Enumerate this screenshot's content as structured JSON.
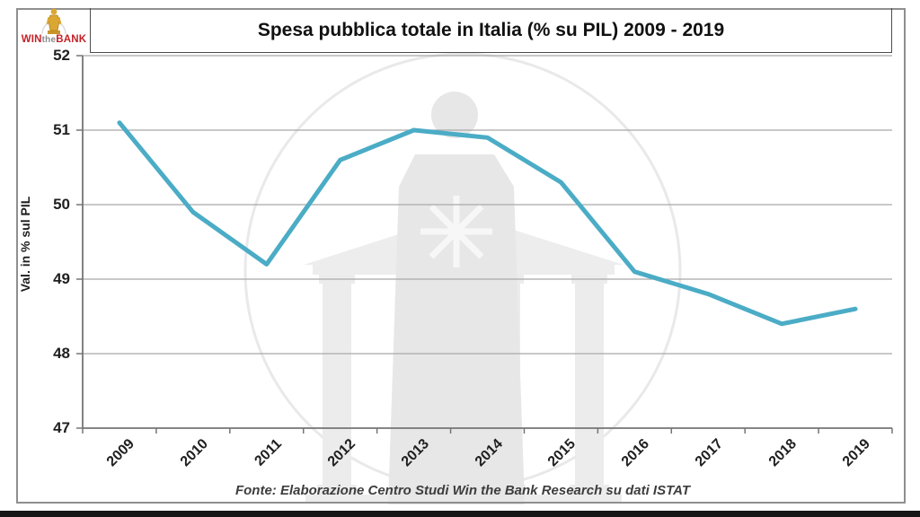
{
  "logo": {
    "win": "WIN",
    "the": "the",
    "bank": "BANK"
  },
  "title": "Spesa pubblica totale in Italia (% su PIL) 2009 - 2019",
  "y_axis_title": "Val. in % sul PIL",
  "footer": "Fonte: Elaborazione Centro Studi Win the Bank Research su dati ISTAT",
  "chart_data": {
    "type": "line",
    "title": "Spesa pubblica totale in Italia (% su PIL) 2009 - 2019",
    "categories": [
      "2009",
      "2010",
      "2011",
      "2012",
      "2013",
      "2014",
      "2015",
      "2016",
      "2017",
      "2018",
      "2019"
    ],
    "values": [
      51.1,
      49.9,
      49.2,
      50.6,
      51.0,
      50.9,
      50.3,
      49.1,
      48.8,
      48.4,
      48.6
    ],
    "xlabel": "",
    "ylabel": "Val. in % sul PIL",
    "ylim": [
      47,
      52
    ],
    "yticks": [
      52,
      51,
      50,
      49,
      48,
      47
    ],
    "grid": true,
    "legend": "none",
    "line_color": "#4BACC6",
    "gridline_color": "#a8a8a8",
    "axis_color": "#757575",
    "source": "Fonte: Elaborazione Centro Studi Win the Bank Research su dati ISTAT"
  }
}
